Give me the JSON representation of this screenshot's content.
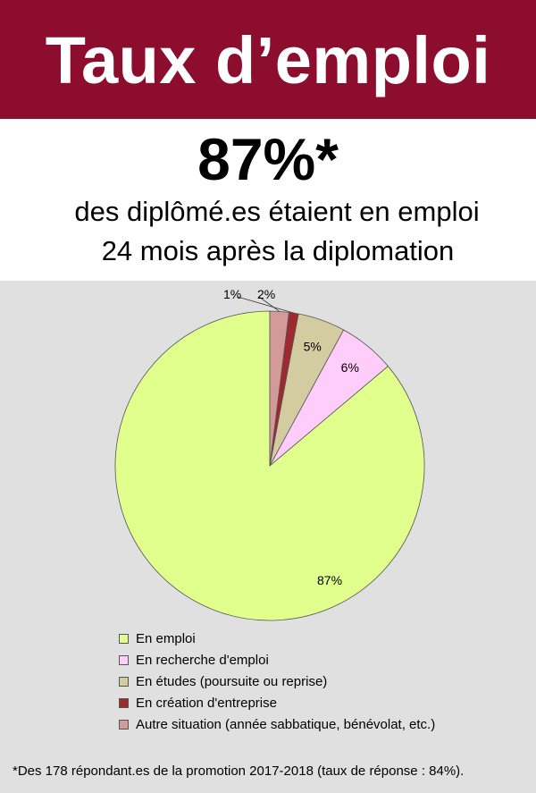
{
  "header": {
    "title": "Taux d’emploi"
  },
  "stat": {
    "value": "87%*",
    "line1": "des diplômé.es étaient en emploi",
    "line2": "24 mois après la diplomation"
  },
  "chart_data": {
    "type": "pie",
    "categories": [
      "En emploi",
      "En recherche d'emploi",
      "En études (poursuite ou reprise)",
      "En création d'entreprise",
      "Autre situation (année sabbatique, bénévolat, etc.)"
    ],
    "values": [
      87,
      6,
      5,
      1,
      2
    ],
    "labels": [
      "87%",
      "6%",
      "5%",
      "1%",
      "2%"
    ],
    "colors": [
      "#e1ff8c",
      "#ffcdfa",
      "#d2cca0",
      "#9e2a30",
      "#d49a9a"
    ],
    "legend_position": "bottom-left"
  },
  "footnote": "*Des 178 répondant.es de la promotion 2017-2018 (taux de réponse : 84%)."
}
